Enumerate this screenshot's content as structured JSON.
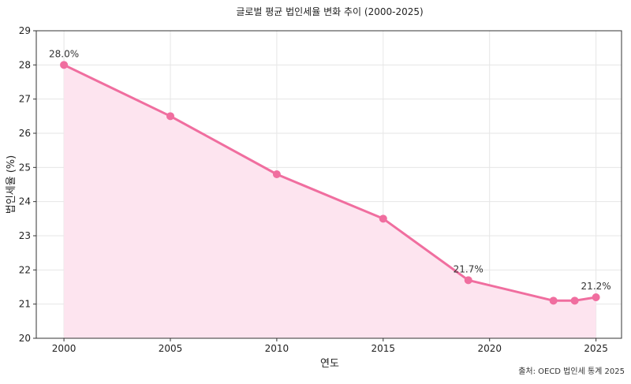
{
  "chart_data": {
    "type": "line",
    "title": "글로벌 평균 법인세율 변화 추이 (2000-2025)",
    "xlabel": "연도",
    "ylabel": "법인세율 (%)",
    "xlim": [
      1998.7,
      2026.2
    ],
    "ylim": [
      20,
      29
    ],
    "x_ticks": [
      2000,
      2005,
      2010,
      2015,
      2020,
      2025
    ],
    "y_ticks": [
      20,
      21,
      22,
      23,
      24,
      25,
      26,
      27,
      28,
      29
    ],
    "series": [
      {
        "x": [
          2000,
          2005,
          2010,
          2015,
          2019,
          2023,
          2024,
          2025
        ],
        "values": [
          28.0,
          26.5,
          24.8,
          23.5,
          21.7,
          21.1,
          21.1,
          21.2
        ]
      }
    ],
    "annotations": [
      {
        "x": 2000,
        "y": 28.0,
        "text": "28.0%"
      },
      {
        "x": 2019,
        "y": 21.7,
        "text": "21.7%"
      },
      {
        "x": 2025,
        "y": 21.2,
        "text": "21.2%"
      }
    ],
    "grid": true,
    "source_note": "출처: OECD 법인세 통계 2025",
    "colors": {
      "line": "#f06e9f",
      "fill": "#fde4ef",
      "grid": "#e6e6e6",
      "axis": "#333333"
    }
  }
}
